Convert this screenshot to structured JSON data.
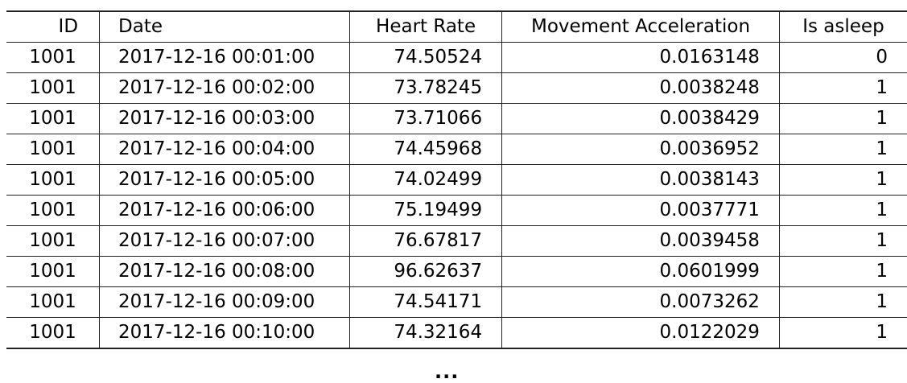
{
  "table": {
    "columns": [
      "ID",
      "Date",
      "Heart Rate",
      "Movement Acceleration",
      "Is asleep"
    ],
    "rows": [
      [
        "1001",
        "2017-12-16 00:01:00",
        "74.50524",
        "0.0163148",
        "0"
      ],
      [
        "1001",
        "2017-12-16 00:02:00",
        "73.78245",
        "0.0038248",
        "1"
      ],
      [
        "1001",
        "2017-12-16 00:03:00",
        "73.71066",
        "0.0038429",
        "1"
      ],
      [
        "1001",
        "2017-12-16 00:04:00",
        "74.45968",
        "0.0036952",
        "1"
      ],
      [
        "1001",
        "2017-12-16 00:05:00",
        "74.02499",
        "0.0038143",
        "1"
      ],
      [
        "1001",
        "2017-12-16 00:06:00",
        "75.19499",
        "0.0037771",
        "1"
      ],
      [
        "1001",
        "2017-12-16 00:07:00",
        "76.67817",
        "0.0039458",
        "1"
      ],
      [
        "1001",
        "2017-12-16 00:08:00",
        "96.62637",
        "0.0601999",
        "1"
      ],
      [
        "1001",
        "2017-12-16 00:09:00",
        "74.54171",
        "0.0073262",
        "1"
      ],
      [
        "1001",
        "2017-12-16 00:10:00",
        "74.32164",
        "0.0122029",
        "1"
      ]
    ],
    "ellipsis": "..."
  }
}
